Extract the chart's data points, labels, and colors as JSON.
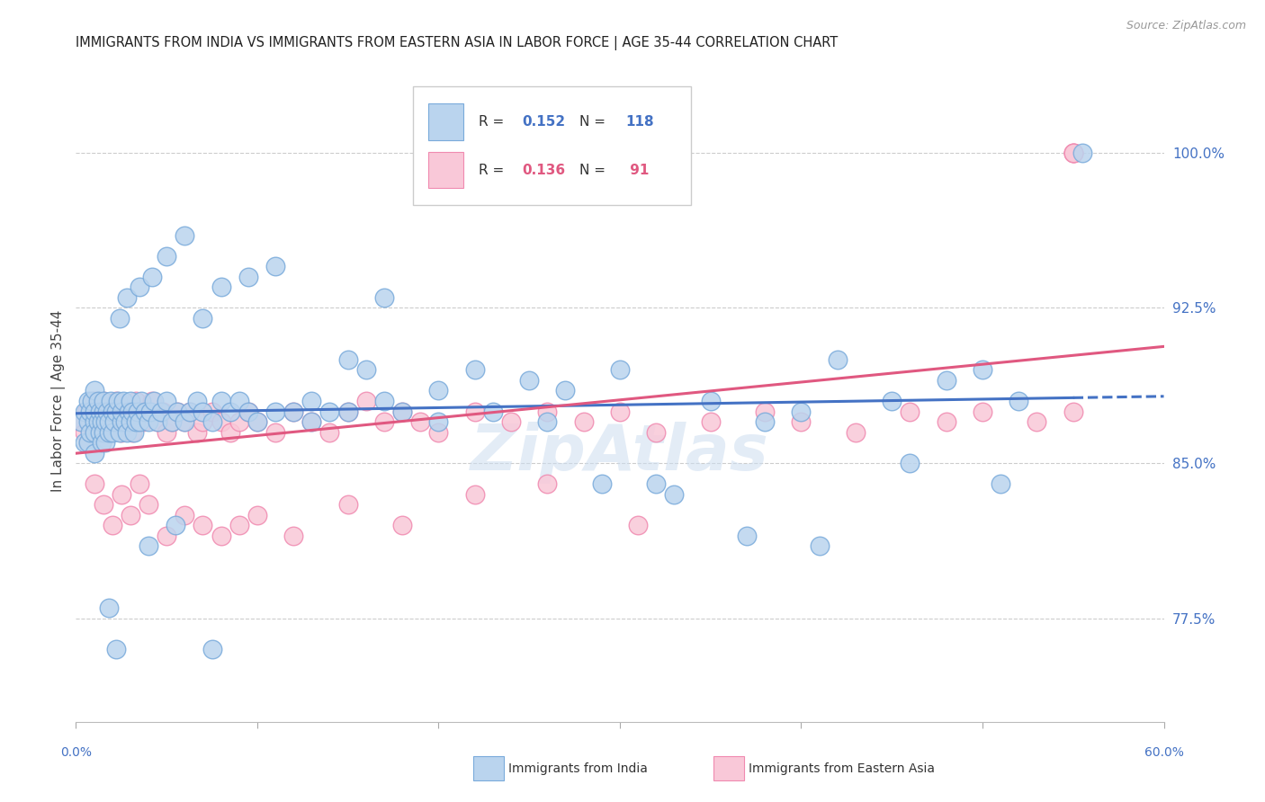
{
  "title": "IMMIGRANTS FROM INDIA VS IMMIGRANTS FROM EASTERN ASIA IN LABOR FORCE | AGE 35-44 CORRELATION CHART",
  "source": "Source: ZipAtlas.com",
  "ylabel": "In Labor Force | Age 35-44",
  "ytick_values": [
    1.0,
    0.925,
    0.85,
    0.775
  ],
  "xmin": 0.0,
  "xmax": 0.6,
  "ymin": 0.725,
  "ymax": 1.035,
  "color_india": "#bad4ee",
  "color_india_edge": "#7aabdb",
  "color_eastern": "#f9c8d8",
  "color_eastern_edge": "#f08ab0",
  "color_trend_india": "#4472c4",
  "color_trend_eastern": "#e05880",
  "watermark": "ZipAtlas",
  "india_x": [
    0.003,
    0.005,
    0.005,
    0.007,
    0.007,
    0.007,
    0.008,
    0.008,
    0.009,
    0.01,
    0.01,
    0.01,
    0.01,
    0.01,
    0.012,
    0.012,
    0.013,
    0.013,
    0.014,
    0.014,
    0.015,
    0.015,
    0.015,
    0.016,
    0.016,
    0.017,
    0.018,
    0.018,
    0.019,
    0.02,
    0.02,
    0.021,
    0.022,
    0.023,
    0.024,
    0.025,
    0.025,
    0.026,
    0.027,
    0.028,
    0.029,
    0.03,
    0.03,
    0.031,
    0.032,
    0.033,
    0.034,
    0.035,
    0.036,
    0.038,
    0.04,
    0.041,
    0.043,
    0.045,
    0.047,
    0.05,
    0.053,
    0.056,
    0.06,
    0.063,
    0.067,
    0.07,
    0.075,
    0.08,
    0.085,
    0.09,
    0.095,
    0.1,
    0.11,
    0.12,
    0.13,
    0.14,
    0.15,
    0.16,
    0.17,
    0.18,
    0.2,
    0.22,
    0.25,
    0.27,
    0.3,
    0.32,
    0.35,
    0.38,
    0.4,
    0.42,
    0.45,
    0.48,
    0.5,
    0.52,
    0.024,
    0.028,
    0.035,
    0.042,
    0.05,
    0.06,
    0.07,
    0.08,
    0.095,
    0.11,
    0.13,
    0.15,
    0.17,
    0.2,
    0.23,
    0.26,
    0.29,
    0.33,
    0.37,
    0.41,
    0.46,
    0.51,
    0.555,
    0.018,
    0.022,
    0.04,
    0.055,
    0.075
  ],
  "india_y": [
    0.87,
    0.875,
    0.86,
    0.88,
    0.87,
    0.86,
    0.875,
    0.865,
    0.88,
    0.87,
    0.865,
    0.855,
    0.885,
    0.875,
    0.87,
    0.88,
    0.865,
    0.875,
    0.86,
    0.87,
    0.875,
    0.865,
    0.88,
    0.87,
    0.86,
    0.875,
    0.865,
    0.87,
    0.88,
    0.875,
    0.865,
    0.87,
    0.875,
    0.88,
    0.865,
    0.87,
    0.875,
    0.88,
    0.87,
    0.865,
    0.875,
    0.87,
    0.88,
    0.875,
    0.865,
    0.87,
    0.875,
    0.87,
    0.88,
    0.875,
    0.87,
    0.875,
    0.88,
    0.87,
    0.875,
    0.88,
    0.87,
    0.875,
    0.87,
    0.875,
    0.88,
    0.875,
    0.87,
    0.88,
    0.875,
    0.88,
    0.875,
    0.87,
    0.875,
    0.875,
    0.88,
    0.875,
    0.9,
    0.895,
    0.93,
    0.875,
    0.885,
    0.895,
    0.89,
    0.885,
    0.895,
    0.84,
    0.88,
    0.87,
    0.875,
    0.9,
    0.88,
    0.89,
    0.895,
    0.88,
    0.92,
    0.93,
    0.935,
    0.94,
    0.95,
    0.96,
    0.92,
    0.935,
    0.94,
    0.945,
    0.87,
    0.875,
    0.88,
    0.87,
    0.875,
    0.87,
    0.84,
    0.835,
    0.815,
    0.81,
    0.85,
    0.84,
    1.0,
    0.78,
    0.76,
    0.81,
    0.82,
    0.76
  ],
  "eastern_x": [
    0.003,
    0.005,
    0.006,
    0.007,
    0.008,
    0.009,
    0.01,
    0.01,
    0.011,
    0.012,
    0.013,
    0.014,
    0.015,
    0.016,
    0.017,
    0.018,
    0.02,
    0.021,
    0.022,
    0.024,
    0.025,
    0.026,
    0.028,
    0.03,
    0.031,
    0.033,
    0.035,
    0.037,
    0.04,
    0.042,
    0.045,
    0.048,
    0.05,
    0.053,
    0.056,
    0.06,
    0.063,
    0.067,
    0.07,
    0.075,
    0.08,
    0.085,
    0.09,
    0.095,
    0.1,
    0.11,
    0.12,
    0.13,
    0.14,
    0.15,
    0.16,
    0.17,
    0.18,
    0.19,
    0.2,
    0.22,
    0.24,
    0.26,
    0.28,
    0.3,
    0.32,
    0.35,
    0.38,
    0.4,
    0.43,
    0.46,
    0.48,
    0.5,
    0.53,
    0.55,
    0.01,
    0.015,
    0.02,
    0.025,
    0.03,
    0.035,
    0.04,
    0.05,
    0.06,
    0.07,
    0.08,
    0.09,
    0.1,
    0.12,
    0.15,
    0.18,
    0.22,
    0.26,
    0.31,
    0.55,
    0.55,
    0.55
  ],
  "eastern_y": [
    0.87,
    0.865,
    0.875,
    0.86,
    0.87,
    0.875,
    0.865,
    0.88,
    0.87,
    0.875,
    0.865,
    0.87,
    0.88,
    0.875,
    0.87,
    0.865,
    0.875,
    0.87,
    0.88,
    0.875,
    0.865,
    0.87,
    0.875,
    0.87,
    0.865,
    0.88,
    0.875,
    0.87,
    0.875,
    0.88,
    0.87,
    0.875,
    0.865,
    0.87,
    0.875,
    0.87,
    0.875,
    0.865,
    0.87,
    0.875,
    0.87,
    0.865,
    0.87,
    0.875,
    0.87,
    0.865,
    0.875,
    0.87,
    0.865,
    0.875,
    0.88,
    0.87,
    0.875,
    0.87,
    0.865,
    0.875,
    0.87,
    0.875,
    0.87,
    0.875,
    0.865,
    0.87,
    0.875,
    0.87,
    0.865,
    0.875,
    0.87,
    0.875,
    0.87,
    0.875,
    0.84,
    0.83,
    0.82,
    0.835,
    0.825,
    0.84,
    0.83,
    0.815,
    0.825,
    0.82,
    0.815,
    0.82,
    0.825,
    0.815,
    0.83,
    0.82,
    0.835,
    0.84,
    0.82,
    1.0,
    1.0,
    1.0
  ]
}
